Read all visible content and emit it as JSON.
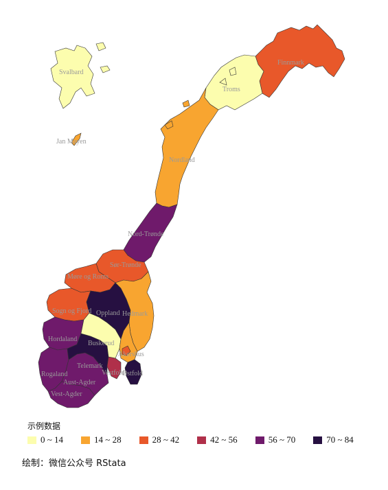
{
  "legend": {
    "title": "示例数据",
    "items": [
      {
        "label": "0 ~ 14",
        "color": "#FCFDAE"
      },
      {
        "label": "14 ~ 28",
        "color": "#F8A530"
      },
      {
        "label": "28 ~ 42",
        "color": "#E8582A"
      },
      {
        "label": "42 ~ 56",
        "color": "#B0304A"
      },
      {
        "label": "56 ~ 70",
        "color": "#6F1A6B"
      },
      {
        "label": "70 ~ 84",
        "color": "#261041"
      }
    ]
  },
  "caption": "绘制：微信公众号 RStata",
  "regions": [
    {
      "name": "Svalbard",
      "class": "0 ~ 14"
    },
    {
      "name": "Jan Mayen",
      "class": "14 ~ 28"
    },
    {
      "name": "Finnmark",
      "class": "28 ~ 42"
    },
    {
      "name": "Troms",
      "class": "0 ~ 14"
    },
    {
      "name": "Nordland",
      "class": "14 ~ 28"
    },
    {
      "name": "Nord-Trønde",
      "class": "56 ~ 70"
    },
    {
      "name": "Sør-Trønde",
      "class": "28 ~ 42"
    },
    {
      "name": "Møre og Roms",
      "class": "28 ~ 42"
    },
    {
      "name": "Sogn og Fjord",
      "class": "28 ~ 42"
    },
    {
      "name": "Hordaland",
      "class": "56 ~ 70"
    },
    {
      "name": "Rogaland",
      "class": "56 ~ 70"
    },
    {
      "name": "Vest-Agder",
      "class": "56 ~ 70"
    },
    {
      "name": "Aust-Agder",
      "class": "56 ~ 70"
    },
    {
      "name": "Telemark",
      "class": "70 ~ 84"
    },
    {
      "name": "Buskerud",
      "class": "0 ~ 14"
    },
    {
      "name": "Oppland",
      "class": "70 ~ 84"
    },
    {
      "name": "Hedmark",
      "class": "14 ~ 28"
    },
    {
      "name": "Vestfold",
      "class": "42 ~ 56"
    },
    {
      "name": "Østfold",
      "class": "70 ~ 84"
    },
    {
      "name": "Akershus",
      "class": "14 ~ 28"
    },
    {
      "name": "Oslo",
      "class": "28 ~ 42"
    }
  ]
}
